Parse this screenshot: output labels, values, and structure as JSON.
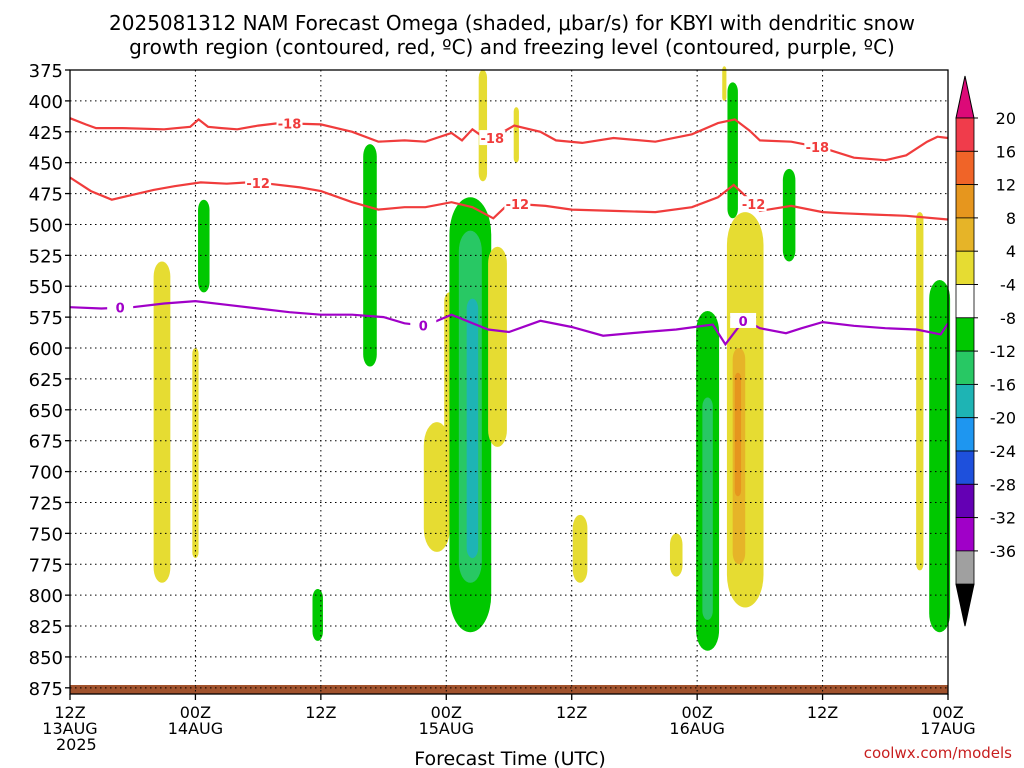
{
  "chart_data": {
    "type": "heatmap",
    "title_line1": "2025081312 NAM Forecast Omega (shaded, μbar/s) for KBYI with dendritic snow",
    "title_line2": "growth region (contoured, red, ºC) and freezing level (contoured, purple, ºC)",
    "xlabel": "Forecast Time (UTC)",
    "credit": "coolwx.com/models",
    "x_ticks": [
      {
        "hour": 0,
        "l1": "12Z",
        "l2": "13AUG",
        "l3": "2025"
      },
      {
        "hour": 12,
        "l1": "00Z",
        "l2": "14AUG",
        "l3": ""
      },
      {
        "hour": 24,
        "l1": "12Z",
        "l2": "",
        "l3": ""
      },
      {
        "hour": 36,
        "l1": "00Z",
        "l2": "15AUG",
        "l3": ""
      },
      {
        "hour": 48,
        "l1": "12Z",
        "l2": "",
        "l3": ""
      },
      {
        "hour": 60,
        "l1": "00Z",
        "l2": "16AUG",
        "l3": ""
      },
      {
        "hour": 72,
        "l1": "12Z",
        "l2": "",
        "l3": ""
      },
      {
        "hour": 84,
        "l1": "00Z",
        "l2": "17AUG",
        "l3": ""
      }
    ],
    "x_range_hours": [
      0,
      84
    ],
    "y_label_levels": [
      375,
      400,
      425,
      450,
      475,
      500,
      525,
      550,
      575,
      600,
      625,
      650,
      675,
      700,
      725,
      750,
      775,
      800,
      825,
      850,
      875
    ],
    "y_label_text": [
      "375",
      "400",
      "425",
      "450",
      "475",
      "500",
      "525",
      "550",
      "575",
      "600",
      "625",
      "650",
      "675",
      "700",
      "725",
      "750",
      "775",
      "800",
      "825",
      "850",
      "875"
    ],
    "y_range_mb": [
      375,
      880
    ],
    "grid": true,
    "colorbar": {
      "labels": [
        "20",
        "16",
        "12",
        "8",
        "4",
        "-4",
        "-8",
        "-12",
        "-16",
        "-20",
        "-24",
        "-28",
        "-32",
        "-36"
      ],
      "colors_top_to_bottom": [
        "#f03c4b",
        "#f06428",
        "#e6961e",
        "#e6b428",
        "#e6dc32",
        "#ffffff",
        "#00c800",
        "#28c864",
        "#1eb4b4",
        "#1e96f0",
        "#1e50dc",
        "#6400b4",
        "#a000c8",
        "#a0a0a0"
      ],
      "top_arrow_color": "#dc0a78",
      "bottom_arrow_color": "#000000"
    },
    "shading_colors": {
      "yellow": "#e6dc32",
      "gold": "#e6b428",
      "orange": "#e6961e",
      "green": "#00c800",
      "seagreen": "#28c864",
      "teal": "#1eb4b4",
      "ground": "#a0522d"
    },
    "omega_regions": [
      {
        "c": "yellow",
        "hour": 8.8,
        "w": 1.6,
        "top": 530,
        "bot": 790
      },
      {
        "c": "yellow",
        "hour": 12.0,
        "w": 0.6,
        "top": 600,
        "bot": 770
      },
      {
        "c": "green",
        "hour": 12.8,
        "w": 1.1,
        "top": 480,
        "bot": 555
      },
      {
        "c": "green",
        "hour": 23.7,
        "w": 1.0,
        "top": 795,
        "bot": 837
      },
      {
        "c": "green",
        "hour": 28.7,
        "w": 1.3,
        "top": 435,
        "bot": 615
      },
      {
        "c": "yellow",
        "hour": 35.1,
        "w": 2.5,
        "top": 660,
        "bot": 765
      },
      {
        "c": "yellow",
        "hour": 36.3,
        "w": 1.0,
        "top": 555,
        "bot": 675
      },
      {
        "c": "green",
        "hour": 38.3,
        "w": 4.0,
        "top": 478,
        "bot": 830
      },
      {
        "c": "seagreen",
        "hour": 38.3,
        "w": 2.2,
        "top": 505,
        "bot": 790
      },
      {
        "c": "teal",
        "hour": 38.5,
        "w": 1.1,
        "top": 560,
        "bot": 770
      },
      {
        "c": "yellow",
        "hour": 40.9,
        "w": 1.8,
        "top": 518,
        "bot": 680
      },
      {
        "c": "yellow",
        "hour": 39.5,
        "w": 0.8,
        "top": 375,
        "bot": 465
      },
      {
        "c": "yellow",
        "hour": 42.7,
        "w": 0.5,
        "top": 405,
        "bot": 450
      },
      {
        "c": "yellow",
        "hour": 48.8,
        "w": 1.4,
        "top": 735,
        "bot": 790
      },
      {
        "c": "green",
        "hour": 61.0,
        "w": 2.2,
        "top": 570,
        "bot": 845
      },
      {
        "c": "seagreen",
        "hour": 61.0,
        "w": 1.0,
        "top": 640,
        "bot": 820
      },
      {
        "c": "yellow",
        "hour": 64.6,
        "w": 3.5,
        "top": 490,
        "bot": 810
      },
      {
        "c": "gold",
        "hour": 64.0,
        "w": 1.2,
        "top": 600,
        "bot": 775
      },
      {
        "c": "orange",
        "hour": 63.9,
        "w": 0.6,
        "top": 620,
        "bot": 720
      },
      {
        "c": "green",
        "hour": 63.4,
        "w": 1.0,
        "top": 385,
        "bot": 495
      },
      {
        "c": "yellow",
        "hour": 62.6,
        "w": 0.4,
        "top": 372,
        "bot": 400
      },
      {
        "c": "green",
        "hour": 68.8,
        "w": 1.2,
        "top": 455,
        "bot": 530
      },
      {
        "c": "yellow",
        "hour": 58.0,
        "w": 1.2,
        "top": 750,
        "bot": 785
      },
      {
        "c": "yellow",
        "hour": 81.3,
        "w": 0.7,
        "top": 490,
        "bot": 780
      },
      {
        "c": "green",
        "hour": 83.2,
        "w": 2.0,
        "top": 545,
        "bot": 830
      }
    ],
    "contours": [
      {
        "value": "-18",
        "color": "#f03c3c",
        "label_hours": [
          21.0,
          40.4,
          71.5
        ],
        "points": [
          [
            0,
            414
          ],
          [
            1.5,
            419
          ],
          [
            2.5,
            422
          ],
          [
            5,
            422
          ],
          [
            9,
            423
          ],
          [
            11.5,
            421
          ],
          [
            12.3,
            415
          ],
          [
            13.2,
            421
          ],
          [
            14.5,
            422
          ],
          [
            16,
            423
          ],
          [
            18,
            420
          ],
          [
            20,
            418
          ],
          [
            24,
            419
          ],
          [
            27,
            425
          ],
          [
            29.5,
            433
          ],
          [
            32,
            432
          ],
          [
            34,
            433
          ],
          [
            36.5,
            426
          ],
          [
            37.5,
            432
          ],
          [
            38.5,
            423
          ],
          [
            40,
            432
          ],
          [
            42.5,
            420
          ],
          [
            45,
            425
          ],
          [
            46.5,
            432
          ],
          [
            49,
            434
          ],
          [
            52,
            430
          ],
          [
            56,
            433
          ],
          [
            59.5,
            427
          ],
          [
            62,
            418
          ],
          [
            63.6,
            415
          ],
          [
            65,
            424
          ],
          [
            66,
            432
          ],
          [
            69,
            433
          ],
          [
            72,
            438
          ],
          [
            75,
            446
          ],
          [
            78,
            448
          ],
          [
            80,
            444
          ],
          [
            82,
            433
          ],
          [
            83,
            429
          ],
          [
            84,
            430
          ]
        ]
      },
      {
        "value": "-12",
        "color": "#f03c3c",
        "label_hours": [
          18.0,
          42.8,
          65.4
        ],
        "points": [
          [
            0,
            462
          ],
          [
            2,
            473
          ],
          [
            4,
            480
          ],
          [
            6,
            476
          ],
          [
            8,
            472
          ],
          [
            10,
            469
          ],
          [
            12.5,
            466
          ],
          [
            15,
            467
          ],
          [
            17,
            466
          ],
          [
            19,
            467
          ],
          [
            22,
            470
          ],
          [
            24,
            473
          ],
          [
            27,
            482
          ],
          [
            29.5,
            488
          ],
          [
            32,
            486
          ],
          [
            34,
            486
          ],
          [
            36.5,
            482
          ],
          [
            38.5,
            486
          ],
          [
            40.5,
            495
          ],
          [
            42,
            483
          ],
          [
            45.5,
            485
          ],
          [
            48,
            488
          ],
          [
            52,
            489
          ],
          [
            56,
            490
          ],
          [
            59.5,
            486
          ],
          [
            62,
            478
          ],
          [
            63.5,
            468
          ],
          [
            65,
            480
          ],
          [
            66,
            489
          ],
          [
            69,
            485
          ],
          [
            72,
            490
          ],
          [
            74,
            491
          ],
          [
            77,
            492
          ],
          [
            80,
            493
          ],
          [
            84,
            496
          ]
        ]
      },
      {
        "value": "0",
        "color": "#a000c8",
        "label_hours": [
          4.8,
          33.8,
          64.4
        ],
        "points": [
          [
            0,
            567
          ],
          [
            3,
            568
          ],
          [
            6,
            567
          ],
          [
            9,
            564
          ],
          [
            12,
            562
          ],
          [
            15,
            565
          ],
          [
            18,
            568
          ],
          [
            21,
            571
          ],
          [
            24,
            573
          ],
          [
            27,
            573
          ],
          [
            30,
            575
          ],
          [
            32,
            580
          ],
          [
            34,
            582
          ],
          [
            36.5,
            573
          ],
          [
            40,
            585
          ],
          [
            42,
            587
          ],
          [
            45,
            578
          ],
          [
            48,
            583
          ],
          [
            51,
            590
          ],
          [
            55,
            587
          ],
          [
            58,
            585
          ],
          [
            61.5,
            581
          ],
          [
            62.7,
            597
          ],
          [
            64.5,
            577
          ],
          [
            66,
            584
          ],
          [
            68.5,
            588
          ],
          [
            70,
            584
          ],
          [
            72,
            579
          ],
          [
            75,
            582
          ],
          [
            78,
            584
          ],
          [
            81,
            585
          ],
          [
            83.3,
            589
          ],
          [
            84,
            580
          ]
        ]
      }
    ]
  }
}
